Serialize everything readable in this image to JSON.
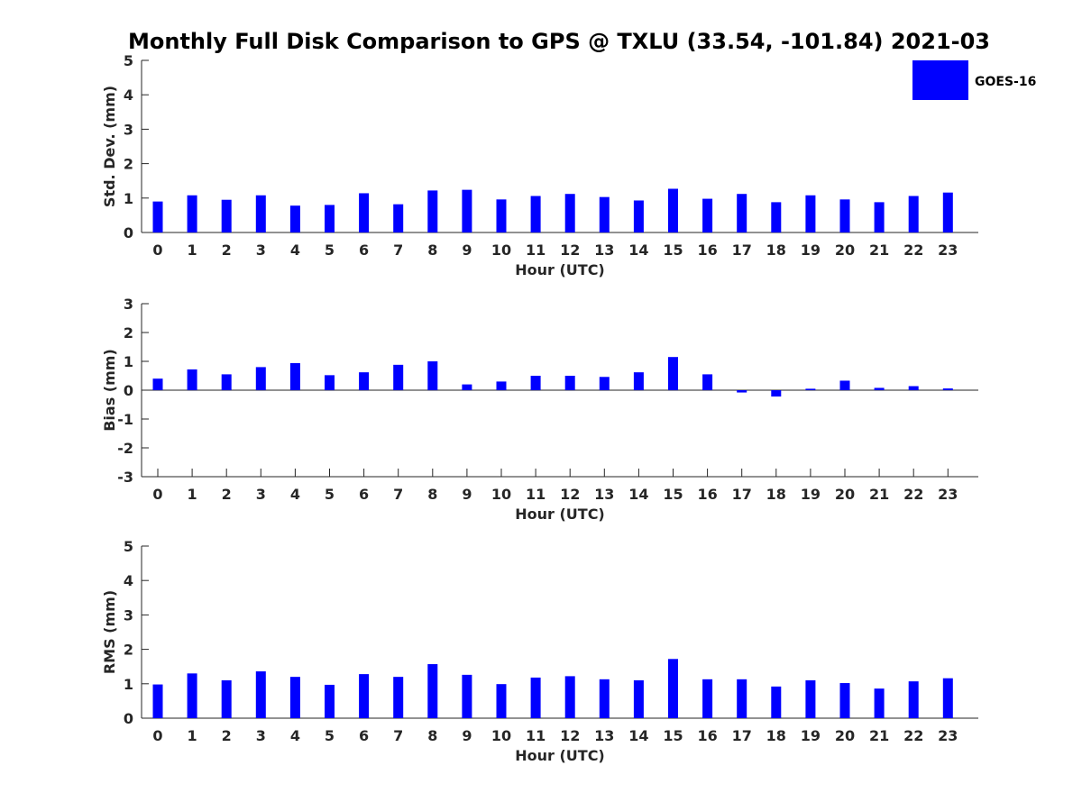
{
  "chart_data": {
    "title": "Monthly Full Disk Comparison to GPS @ TXLU (33.54, -101.84) 2021-03",
    "legend": {
      "entries": [
        "GOES-16"
      ],
      "placement": "top-right"
    },
    "colors": {
      "bar": "#0000ff",
      "axis": "#262626"
    },
    "panels": [
      {
        "type": "bar",
        "ylabel": "Std. Dev. (mm)",
        "xlabel": "Hour (UTC)",
        "ylim": [
          0,
          5
        ],
        "yticks": [
          0,
          1,
          2,
          3,
          4,
          5
        ],
        "categories": [
          "0",
          "1",
          "2",
          "3",
          "4",
          "5",
          "6",
          "7",
          "8",
          "9",
          "10",
          "11",
          "12",
          "13",
          "14",
          "15",
          "16",
          "17",
          "18",
          "19",
          "20",
          "21",
          "22",
          "23"
        ],
        "series": [
          {
            "name": "GOES-16",
            "values": [
              0.9,
              1.08,
              0.95,
              1.08,
              0.78,
              0.8,
              1.14,
              0.82,
              1.22,
              1.24,
              0.96,
              1.06,
              1.12,
              1.03,
              0.93,
              1.27,
              0.98,
              1.12,
              0.88,
              1.08,
              0.96,
              0.88,
              1.06,
              1.16
            ]
          }
        ]
      },
      {
        "type": "bar",
        "ylabel": "Bias (mm)",
        "xlabel": "Hour (UTC)",
        "ylim": [
          -3,
          3
        ],
        "yticks": [
          -3,
          -2,
          -1,
          0,
          1,
          2,
          3
        ],
        "categories": [
          "0",
          "1",
          "2",
          "3",
          "4",
          "5",
          "6",
          "7",
          "8",
          "9",
          "10",
          "11",
          "12",
          "13",
          "14",
          "15",
          "16",
          "17",
          "18",
          "19",
          "20",
          "21",
          "22",
          "23"
        ],
        "series": [
          {
            "name": "GOES-16",
            "values": [
              0.4,
              0.72,
              0.55,
              0.8,
              0.94,
              0.52,
              0.62,
              0.88,
              1.0,
              0.2,
              0.3,
              0.5,
              0.5,
              0.46,
              0.62,
              1.15,
              0.55,
              -0.08,
              -0.22,
              0.05,
              0.33,
              0.08,
              0.14,
              0.06
            ]
          }
        ]
      },
      {
        "type": "bar",
        "ylabel": "RMS (mm)",
        "xlabel": "Hour (UTC)",
        "ylim": [
          0,
          5
        ],
        "yticks": [
          0,
          1,
          2,
          3,
          4,
          5
        ],
        "categories": [
          "0",
          "1",
          "2",
          "3",
          "4",
          "5",
          "6",
          "7",
          "8",
          "9",
          "10",
          "11",
          "12",
          "13",
          "14",
          "15",
          "16",
          "17",
          "18",
          "19",
          "20",
          "21",
          "22",
          "23"
        ],
        "series": [
          {
            "name": "GOES-16",
            "values": [
              0.98,
              1.3,
              1.1,
              1.36,
              1.2,
              0.97,
              1.28,
              1.2,
              1.57,
              1.26,
              0.99,
              1.18,
              1.22,
              1.13,
              1.1,
              1.72,
              1.13,
              1.13,
              0.92,
              1.1,
              1.02,
              0.86,
              1.07,
              1.16
            ]
          }
        ]
      }
    ]
  }
}
